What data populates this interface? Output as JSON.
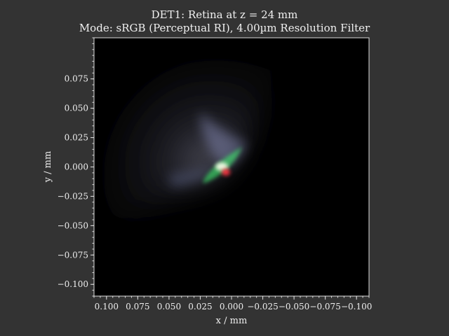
{
  "window": {
    "background": "#333333"
  },
  "chart_data": {
    "type": "heatmap",
    "title": "DET1: Retina at z = 24 mm",
    "subtitle": "Mode: sRGB (Perceptual RI), 4.00µm Resolution Filter",
    "xlabel": "x / mm",
    "ylabel": "y / mm",
    "xlim": [
      0.11,
      -0.11
    ],
    "ylim": [
      0.11,
      -0.11
    ],
    "x_ticks": [
      0.1,
      0.075,
      0.05,
      0.025,
      0.0,
      -0.025,
      -0.05,
      -0.075,
      -0.1
    ],
    "x_tick_labels": [
      "0.100",
      "0.075",
      "0.050",
      "0.025",
      "0.000",
      "−0.025",
      "−0.050",
      "−0.075",
      "−0.100"
    ],
    "y_ticks": [
      -0.1,
      -0.075,
      -0.05,
      -0.025,
      0.0,
      0.025,
      0.05,
      0.075
    ],
    "y_tick_labels": [
      "−0.100",
      "−0.075",
      "−0.050",
      "−0.025",
      "0.000",
      "0.025",
      "0.050",
      "0.075"
    ],
    "minor_tick_step": 0.005,
    "grid": false,
    "image_description_colors": {
      "plot_background": "#000000",
      "halo": "#4a4a5a",
      "core_green": "#3cff6e",
      "core_red": "#ff3040",
      "core_white": "#ffffee"
    }
  }
}
